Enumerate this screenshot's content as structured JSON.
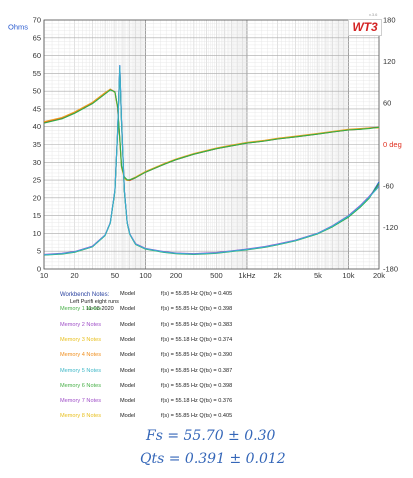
{
  "chart_data": {
    "type": "line",
    "x_scale": "log",
    "xlim": [
      10,
      20000
    ],
    "ylim": [
      0,
      70
    ],
    "y2lim": [
      -180,
      180
    ],
    "grid": true,
    "y_unit_label": "Ohms",
    "y2_unit_label": "deg",
    "y2_zero_label": "0 deg",
    "x_ticks": [
      {
        "v": 10,
        "label": "10"
      },
      {
        "v": 20,
        "label": "20"
      },
      {
        "v": 50,
        "label": "50"
      },
      {
        "v": 100,
        "label": "100"
      },
      {
        "v": 200,
        "label": "200"
      },
      {
        "v": 500,
        "label": "500"
      },
      {
        "v": 1000,
        "label": "1kHz"
      },
      {
        "v": 2000,
        "label": "2k"
      },
      {
        "v": 5000,
        "label": "5k"
      },
      {
        "v": 10000,
        "label": "10k"
      },
      {
        "v": 20000,
        "label": "20k"
      }
    ],
    "y_ticks": [
      0,
      5,
      10,
      15,
      20,
      25,
      30,
      35,
      40,
      45,
      50,
      55,
      60,
      65,
      70
    ],
    "y2_ticks": [
      {
        "v": 180,
        "label": "180"
      },
      {
        "v": 120,
        "label": "120"
      },
      {
        "v": 60,
        "label": "60"
      },
      {
        "v": -60,
        "label": "-60"
      },
      {
        "v": -120,
        "label": "-120"
      },
      {
        "v": -180,
        "label": "-180"
      }
    ],
    "impedance_series": [
      {
        "color": "#2a5bd0",
        "x": [
          10,
          15,
          20,
          30,
          40,
          45,
          50,
          53,
          55.85,
          58,
          62,
          66,
          70,
          80,
          100,
          150,
          200,
          300,
          500,
          700,
          1000,
          1500,
          2000,
          3000,
          5000,
          7000,
          10000,
          13000,
          16000,
          20000
        ],
        "y": [
          4.0,
          4.3,
          4.8,
          6.3,
          9.5,
          13.0,
          22.0,
          38.0,
          57.2,
          42.0,
          22.0,
          13.0,
          9.8,
          7.0,
          5.7,
          4.8,
          4.4,
          4.2,
          4.5,
          5.0,
          5.5,
          6.2,
          6.9,
          8.0,
          10.0,
          12.0,
          14.8,
          17.5,
          20.0,
          24.5
        ]
      },
      {
        "color": "#9a4bd0",
        "x": [
          10,
          15,
          20,
          30,
          40,
          45,
          50,
          53,
          55.85,
          58,
          62,
          66,
          70,
          80,
          100,
          150,
          200,
          300,
          500,
          700,
          1000,
          1500,
          2000,
          3000,
          5000,
          7000,
          10000,
          13000,
          16000,
          20000
        ],
        "y": [
          4.1,
          4.4,
          4.9,
          6.4,
          9.6,
          13.1,
          22.1,
          37.8,
          56.8,
          41.6,
          21.9,
          13.1,
          9.9,
          7.1,
          5.8,
          4.9,
          4.5,
          4.3,
          4.6,
          5.1,
          5.6,
          6.3,
          7.0,
          8.1,
          10.1,
          12.2,
          15.0,
          17.8,
          20.4,
          23.6
        ]
      },
      {
        "color": "#2eb048",
        "x": [
          10,
          15,
          20,
          30,
          40,
          45,
          50,
          53,
          55.85,
          58,
          62,
          66,
          70,
          80,
          100,
          150,
          200,
          300,
          500,
          700,
          1000,
          1500,
          2000,
          3000,
          5000,
          7000,
          10000,
          13000,
          16000,
          20000
        ],
        "y": [
          3.9,
          4.2,
          4.7,
          6.2,
          9.4,
          12.9,
          21.8,
          37.5,
          56.5,
          41.2,
          21.6,
          12.9,
          9.7,
          6.9,
          5.6,
          4.7,
          4.3,
          4.1,
          4.4,
          4.9,
          5.4,
          6.1,
          6.8,
          7.9,
          9.9,
          11.9,
          14.6,
          17.3,
          19.9,
          24.0
        ]
      },
      {
        "color": "#3aaed0",
        "x": [
          10,
          15,
          20,
          30,
          40,
          45,
          50,
          53,
          55.85,
          58,
          62,
          66,
          70,
          80,
          100,
          150,
          200,
          300,
          500,
          700,
          1000,
          1500,
          2000,
          3000,
          5000,
          7000,
          10000,
          13000,
          16000,
          20000
        ],
        "y": [
          4.0,
          4.3,
          4.8,
          6.3,
          9.5,
          13.0,
          22.0,
          37.9,
          57.0,
          41.8,
          21.8,
          13.0,
          9.8,
          7.0,
          5.7,
          4.8,
          4.4,
          4.2,
          4.5,
          5.0,
          5.5,
          6.2,
          6.9,
          8.0,
          10.0,
          12.1,
          14.9,
          17.6,
          20.2,
          23.2
        ]
      }
    ],
    "phase_series": [
      {
        "color": "#e03020",
        "x": [
          10,
          15,
          20,
          30,
          40,
          45,
          50,
          53,
          55.85,
          58,
          62,
          66,
          70,
          80,
          100,
          150,
          200,
          300,
          500,
          700,
          1000,
          1500,
          2000,
          3000,
          5000,
          7000,
          10000,
          13000,
          16000,
          20000
        ],
        "y": [
          32,
          38,
          46,
          60,
          74,
          80,
          76,
          55,
          8,
          -32,
          -48,
          -52,
          -52,
          -48,
          -40,
          -29,
          -22,
          -14,
          -6,
          -2,
          2,
          5,
          8,
          11,
          15,
          18,
          21,
          22,
          24,
          25
        ]
      },
      {
        "color": "#e8a020",
        "x": [
          10,
          15,
          20,
          30,
          40,
          45,
          50,
          53,
          55.85,
          58,
          62,
          66,
          70,
          80,
          100,
          150,
          200,
          300,
          500,
          700,
          1000,
          1500,
          2000,
          3000,
          5000,
          7000,
          10000,
          13000,
          16000,
          20000
        ],
        "y": [
          33,
          39,
          47,
          61,
          75,
          80,
          75,
          53,
          6,
          -33,
          -49,
          -52,
          -51,
          -47,
          -39,
          -28,
          -21,
          -13,
          -5,
          -1,
          3,
          6,
          9,
          12,
          16,
          19,
          22,
          23,
          24,
          24
        ]
      },
      {
        "color": "#2eb048",
        "x": [
          10,
          15,
          20,
          30,
          40,
          45,
          50,
          53,
          55.85,
          58,
          62,
          66,
          70,
          80,
          100,
          150,
          200,
          300,
          500,
          700,
          1000,
          1500,
          2000,
          3000,
          5000,
          7000,
          10000,
          13000,
          16000,
          20000
        ],
        "y": [
          31,
          37,
          45,
          59,
          73,
          79,
          76,
          56,
          9,
          -31,
          -47,
          -51,
          -51,
          -48,
          -40,
          -29,
          -22,
          -14,
          -6,
          -2,
          2,
          5,
          8,
          11,
          15,
          18,
          21,
          22,
          23,
          25
        ]
      }
    ]
  },
  "logo": {
    "text": "WT3",
    "tag": "v.3.6"
  },
  "notes": {
    "title": "Workbench Notes:",
    "line1": "Left Purifi eight runs",
    "line2": "11-08-2020"
  },
  "measurements": [
    {
      "label": "",
      "label_color": "#222222",
      "model": "Model",
      "result": "f(s) = 55.85 Hz  Q(ts) = 0.405"
    },
    {
      "label": "Memory 1 Notes",
      "label_color": "#48b048",
      "model": "Model",
      "result": "f(s) = 55.85 Hz  Q(ts) = 0.398"
    },
    {
      "label": "Memory 2 Notes",
      "label_color": "#a050c8",
      "model": "Model",
      "result": "f(s) = 55.85 Hz  Q(ts) = 0.383"
    },
    {
      "label": "Memory 3 Notes",
      "label_color": "#e8c020",
      "model": "Model",
      "result": "f(s) = 55.18 Hz  Q(ts) = 0.374"
    },
    {
      "label": "Memory 4 Notes",
      "label_color": "#f09020",
      "model": "Model",
      "result": "f(s) = 55.85 Hz  Q(ts) = 0.390"
    },
    {
      "label": "Memory 5 Notes",
      "label_color": "#40b8c8",
      "model": "Model",
      "result": "f(s) = 55.85 Hz  Q(ts) = 0.387"
    },
    {
      "label": "Memory 6 Notes",
      "label_color": "#48b048",
      "model": "Model",
      "result": "f(s) = 55.85 Hz  Q(ts) = 0.398"
    },
    {
      "label": "Memory 7 Notes",
      "label_color": "#a050c8",
      "model": "Model",
      "result": "f(s) = 55.18 Hz  Q(ts) = 0.376"
    },
    {
      "label": "Memory 8 Notes",
      "label_color": "#e8c020",
      "model": "Model",
      "result": "f(s) = 55.85 Hz  Q(ts) = 0.405"
    }
  ],
  "handwritten": {
    "fs": "Fs = 55.70 ± 0.30",
    "qts": "Qts = 0.391 ± 0.012"
  }
}
